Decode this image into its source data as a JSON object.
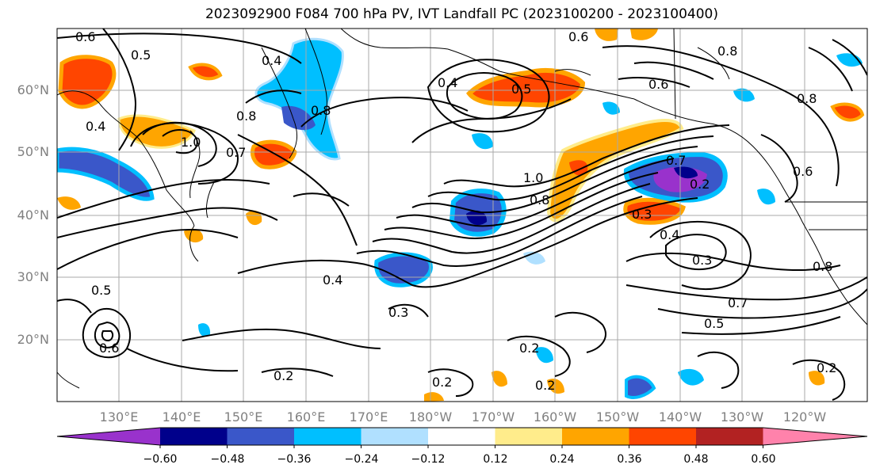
{
  "title": "2023092900 F084 700 hPa PV, IVT Landfall PC (2023100200 - 2023100400)",
  "map": {
    "lat_labels": [
      "60°N",
      "50°N",
      "40°N",
      "30°N",
      "20°N"
    ],
    "lon_labels": [
      "130°E",
      "140°E",
      "150°E",
      "160°E",
      "170°E",
      "180°W",
      "170°W",
      "160°W",
      "150°W",
      "140°W",
      "130°W",
      "120°W"
    ],
    "contour_labels": [
      "0.6",
      "0.5",
      "0.4",
      "0.6",
      "0.4",
      "0.5",
      "0.8",
      "0.6",
      "0.8",
      "0.8",
      "1.0",
      "0.7",
      "0.8",
      "1.0",
      "0.8",
      "0.7",
      "0.6",
      "0.3",
      "0.4",
      "0.3",
      "0.2",
      "0.4",
      "0.3",
      "0.2",
      "0.2",
      "0.2",
      "0.7",
      "0.5",
      "0.2",
      "0.8",
      "0.2",
      "0.5",
      "0.6",
      "0.4"
    ]
  },
  "colorbar": {
    "ticks": [
      "−0.60",
      "−0.48",
      "−0.36",
      "−0.24",
      "−0.12",
      "0.12",
      "0.24",
      "0.36",
      "0.48",
      "0.60"
    ],
    "colors": [
      "#9932cc",
      "#00008b",
      "#3a57c9",
      "#00bfff",
      "#b0e0ff",
      "#ffffff",
      "#ffec8b",
      "#ffa500",
      "#ff4500",
      "#b22222",
      "#ff82ab"
    ]
  }
}
